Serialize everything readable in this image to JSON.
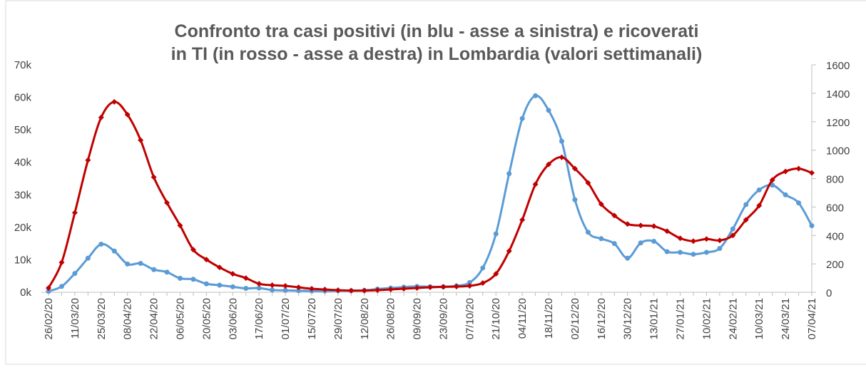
{
  "chart_data": {
    "type": "line",
    "title": [
      "Confronto tra casi positivi (in blu - asse a sinistra) e ricoverati",
      "in TI (in rosso - asse a destra) in Lombardia (valori settimanali)"
    ],
    "categories": [
      "26/02/20",
      null,
      "11/03/20",
      null,
      "25/03/20",
      null,
      "08/04/20",
      null,
      "22/04/20",
      null,
      "06/05/20",
      null,
      "20/05/20",
      null,
      "03/06/20",
      null,
      "17/06/20",
      null,
      "01/07/20",
      null,
      "15/07/20",
      null,
      "29/07/20",
      null,
      "12/08/20",
      null,
      "26/08/20",
      null,
      "09/09/20",
      null,
      "23/09/20",
      null,
      "07/10/20",
      null,
      "21/10/20",
      null,
      "04/11/20",
      null,
      "18/11/20",
      null,
      "02/12/20",
      null,
      "16/12/20",
      null,
      "30/12/20",
      null,
      "13/01/21",
      null,
      "27/01/21",
      null,
      "10/02/21",
      null,
      "24/02/21",
      null,
      "10/03/21",
      null,
      "24/03/21",
      null,
      "07/04/21"
    ],
    "series": [
      {
        "color": "#5b9bd5",
        "marker": "circle",
        "values": [
          300,
          1800,
          5800,
          10500,
          14800,
          12700,
          8700,
          8900,
          7000,
          6200,
          4300,
          4000,
          2600,
          2200,
          1700,
          1200,
          1300,
          700,
          600,
          500,
          400,
          400,
          500,
          500,
          600,
          1000,
          1300,
          1600,
          1800,
          1700,
          1700,
          2000,
          3000,
          7500,
          18000,
          36500,
          53500,
          60500,
          56000,
          46500,
          28500,
          18500,
          16500,
          15000,
          10500,
          15200,
          15700,
          12500,
          12300,
          11700,
          12300,
          13500,
          19500,
          27000,
          31500,
          33000,
          30000,
          27500,
          20500
        ]
      },
      {
        "color": "#c00000",
        "marker": "diamond",
        "axis": "y2",
        "values": [
          30,
          210,
          560,
          930,
          1230,
          1340,
          1250,
          1070,
          810,
          630,
          470,
          300,
          230,
          175,
          130,
          100,
          60,
          50,
          45,
          35,
          25,
          20,
          15,
          12,
          12,
          15,
          20,
          25,
          30,
          35,
          38,
          40,
          45,
          65,
          130,
          290,
          510,
          760,
          900,
          950,
          870,
          770,
          620,
          540,
          480,
          470,
          465,
          430,
          380,
          360,
          375,
          365,
          400,
          510,
          610,
          790,
          850,
          870,
          840
        ]
      }
    ],
    "ylim": [
      0,
      70000
    ],
    "yticks": [
      {
        "value": 0,
        "label": "0k"
      },
      {
        "value": 10000,
        "label": "10k"
      },
      {
        "value": 20000,
        "label": "20k"
      },
      {
        "value": 30000,
        "label": "30k"
      },
      {
        "value": 40000,
        "label": "40k"
      },
      {
        "value": 50000,
        "label": "50k"
      },
      {
        "value": 60000,
        "label": "60k"
      },
      {
        "value": 70000,
        "label": "70k"
      }
    ],
    "y2lim": [
      0,
      1600
    ],
    "y2ticks": [
      0,
      200,
      400,
      600,
      800,
      1000,
      1200,
      1400,
      1600
    ]
  }
}
